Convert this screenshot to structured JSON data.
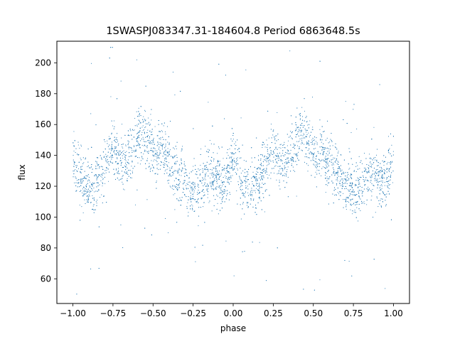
{
  "chart_data": {
    "type": "scatter",
    "title": "1SWASPJ083347.31-184604.8 Period 6863648.5s",
    "xlabel": "phase",
    "ylabel": "flux",
    "xlim": [
      -1.1,
      1.1
    ],
    "ylim": [
      44,
      214
    ],
    "xticks": [
      -1.0,
      -0.75,
      -0.5,
      -0.25,
      0.0,
      0.25,
      0.5,
      0.75,
      1.0
    ],
    "xtick_labels": [
      "−1.00",
      "−0.75",
      "−0.50",
      "−0.25",
      "0.00",
      "0.25",
      "0.50",
      "0.75",
      "1.00"
    ],
    "yticks": [
      60,
      80,
      100,
      120,
      140,
      160,
      180,
      200
    ],
    "ytick_labels": [
      "60",
      "80",
      "100",
      "120",
      "140",
      "160",
      "180",
      "200"
    ],
    "grid": false,
    "marker_color": "#1f77b4",
    "series": [
      {
        "phase_flux_trend": [
          [
            -1.0,
            140
          ],
          [
            -0.97,
            135
          ],
          [
            -0.94,
            122
          ],
          [
            -0.9,
            118
          ],
          [
            -0.85,
            122
          ],
          [
            -0.82,
            128
          ],
          [
            -0.78,
            140
          ],
          [
            -0.75,
            145
          ],
          [
            -0.72,
            138
          ],
          [
            -0.68,
            135
          ],
          [
            -0.64,
            140
          ],
          [
            -0.6,
            150
          ],
          [
            -0.56,
            155
          ],
          [
            -0.52,
            148
          ],
          [
            -0.48,
            140
          ],
          [
            -0.45,
            150
          ],
          [
            -0.42,
            138
          ],
          [
            -0.38,
            132
          ],
          [
            -0.35,
            128
          ],
          [
            -0.3,
            122
          ],
          [
            -0.25,
            118
          ],
          [
            -0.2,
            122
          ],
          [
            -0.15,
            128
          ],
          [
            -0.1,
            125
          ],
          [
            -0.05,
            122
          ],
          [
            0.0,
            140
          ],
          [
            0.03,
            135
          ],
          [
            0.06,
            122
          ],
          [
            0.1,
            118
          ],
          [
            0.15,
            122
          ],
          [
            0.18,
            128
          ],
          [
            0.22,
            140
          ],
          [
            0.25,
            145
          ],
          [
            0.28,
            138
          ],
          [
            0.32,
            135
          ],
          [
            0.36,
            140
          ],
          [
            0.4,
            150
          ],
          [
            0.44,
            155
          ],
          [
            0.48,
            148
          ],
          [
            0.52,
            140
          ],
          [
            0.55,
            150
          ],
          [
            0.58,
            138
          ],
          [
            0.62,
            132
          ],
          [
            0.65,
            128
          ],
          [
            0.7,
            122
          ],
          [
            0.75,
            118
          ],
          [
            0.8,
            122
          ],
          [
            0.85,
            128
          ],
          [
            0.9,
            125
          ],
          [
            0.95,
            122
          ],
          [
            1.0,
            140
          ]
        ]
      }
    ]
  }
}
